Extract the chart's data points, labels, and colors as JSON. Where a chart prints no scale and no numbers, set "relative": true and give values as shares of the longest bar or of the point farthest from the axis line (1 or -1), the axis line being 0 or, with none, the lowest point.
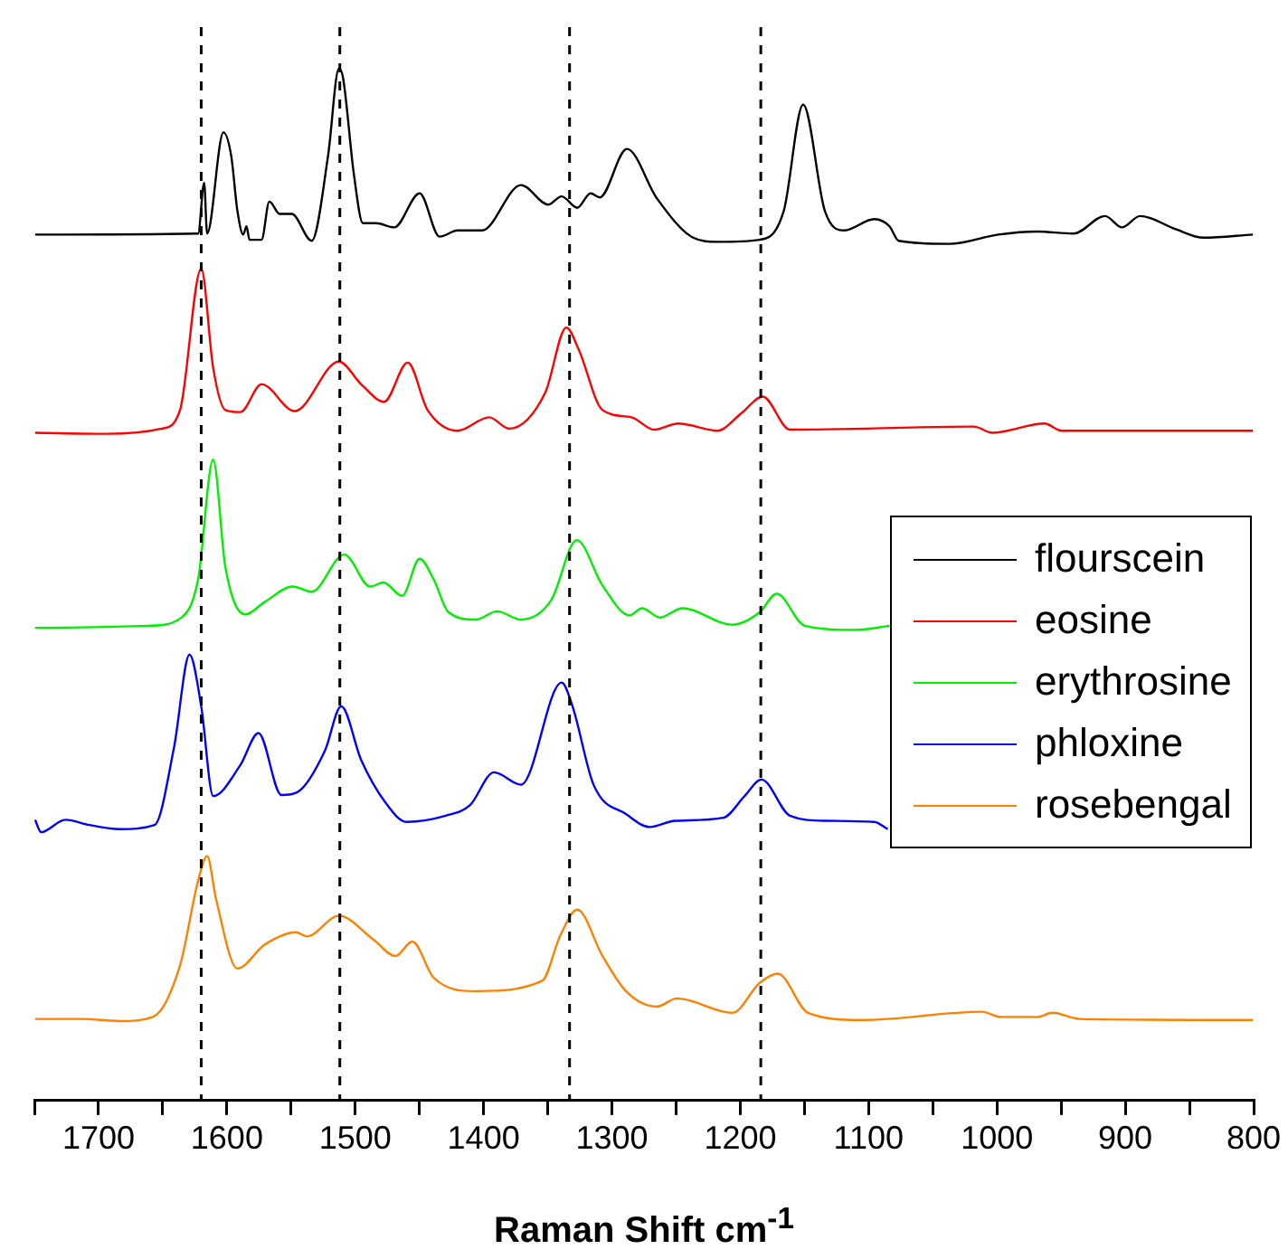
{
  "chart_data": {
    "type": "line",
    "xlabel": "Raman Shift cm$^{-1}$",
    "relative": true,
    "marker": "none",
    "legend": "right",
    "xlim": [
      1750,
      800
    ],
    "xticks": [
      {
        "value": 1750,
        "label": null
      },
      1700,
      {
        "value": 1650,
        "label": null
      },
      1600,
      {
        "value": 1550,
        "label": null
      },
      1500,
      {
        "value": 1450,
        "label": null
      },
      1400,
      {
        "value": 1350,
        "label": null
      },
      1300,
      {
        "value": 1250,
        "label": null
      },
      1200,
      {
        "value": 1150,
        "label": null
      },
      1100,
      {
        "value": 1050,
        "label": null
      },
      1000,
      {
        "value": 950,
        "label": null
      },
      900,
      {
        "value": 850,
        "label": null
      },
      800
    ],
    "ref_lines": [
      {
        "axis": "x",
        "value": 1620,
        "color": "#000000",
        "line_style": "dashed"
      },
      {
        "axis": "x",
        "value": 1512,
        "color": "#000000",
        "line_style": "dashed"
      },
      {
        "axis": "x",
        "value": 1333,
        "color": "#000000",
        "line_style": "dashed"
      },
      {
        "axis": "x",
        "value": 1184,
        "color": "#000000",
        "line_style": "dashed"
      }
    ],
    "series": [
      {
        "name": "flourscein",
        "color": "#000000",
        "x": [
          1749.4,
          1622.4,
          1617.7,
          1615.4,
          1602.7,
          1596.6,
          1591.8,
          1587.2,
          1584.7,
          1582.4,
          1573.0,
          1566.9,
          1558.9,
          1549.4,
          1533.9,
          1521.2,
          1512.7,
          1509.5,
          1501.0,
          1494.0,
          1483.7,
          1469.6,
          1449.8,
          1434.3,
          1420.2,
          1401.3,
          1370.8,
          1349.6,
          1339.2,
          1327.0,
          1316.6,
          1309.5,
          1288.3,
          1264.9,
          1236.7,
          1217.8,
          1184.9,
          1166.1,
          1151.0,
          1134.1,
          1119.0,
          1095.6,
          1083.7,
          1076.6,
          1036.7,
          999.0,
          968.5,
          940.3,
          915.7,
          902.6,
          888.5,
          860.3,
          839.1,
          800.6
        ],
        "values": [
          0.839,
          0.84,
          0.889,
          0.84,
          0.938,
          0.915,
          0.862,
          0.839,
          0.847,
          0.834,
          0.834,
          0.871,
          0.859,
          0.859,
          0.833,
          0.915,
          1,
          0.991,
          0.897,
          0.85,
          0.85,
          0.846,
          0.879,
          0.837,
          0.843,
          0.843,
          0.887,
          0.868,
          0.876,
          0.865,
          0.879,
          0.875,
          0.922,
          0.874,
          0.836,
          0.832,
          0.834,
          0.862,
          0.965,
          0.862,
          0.843,
          0.854,
          0.847,
          0.833,
          0.83,
          0.839,
          0.842,
          0.84,
          0.857,
          0.846,
          0.857,
          0.844,
          0.836,
          0.839
        ]
      },
      {
        "name": "eosine",
        "color": "#ff0000",
        "x": [
          1749.4,
          1693.0,
          1650.6,
          1636.5,
          1620.0,
          1610.7,
          1601.2,
          1589.5,
          1573.0,
          1547.2,
          1512.7,
          1495.4,
          1477.5,
          1459.1,
          1443.6,
          1420.2,
          1395.6,
          1380.1,
          1351.9,
          1335.5,
          1326.0,
          1307.3,
          1284.7,
          1267.2,
          1248.4,
          1217.8,
          1199.0,
          1182.5,
          1161.3,
          1017.9,
          1003.8,
          962.9,
          949.6,
          800.6
        ],
        "values": [
          0.647,
          0.646,
          0.651,
          0.669,
          0.806,
          0.71,
          0.669,
          0.667,
          0.694,
          0.668,
          0.716,
          0.694,
          0.677,
          0.715,
          0.669,
          0.649,
          0.662,
          0.651,
          0.686,
          0.749,
          0.728,
          0.669,
          0.662,
          0.65,
          0.656,
          0.649,
          0.666,
          0.682,
          0.65,
          0.653,
          0.647,
          0.656,
          0.649,
          0.649
        ]
      },
      {
        "name": "erythrosine",
        "color": "#00ee00",
        "x": [
          1749.4,
          1660.7,
          1636.5,
          1622.4,
          1610.7,
          1601.2,
          1585.7,
          1570.6,
          1548.6,
          1533.9,
          1508.5,
          1488.3,
          1478.0,
          1463.4,
          1449.8,
          1438.9,
          1427.2,
          1406.0,
          1389.5,
          1370.8,
          1347.2,
          1327.4,
          1307.3,
          1286.1,
          1276.6,
          1262.5,
          1245.1,
          1206.1,
          1184.9,
          1171.7,
          1149.6,
          1109.7,
          1083.7
        ],
        "values": [
          0.458,
          0.46,
          0.467,
          0.505,
          0.621,
          0.517,
          0.471,
          0.483,
          0.498,
          0.493,
          0.529,
          0.498,
          0.502,
          0.489,
          0.525,
          0.505,
          0.473,
          0.466,
          0.474,
          0.466,
          0.485,
          0.543,
          0.499,
          0.47,
          0.477,
          0.468,
          0.477,
          0.461,
          0.473,
          0.491,
          0.46,
          0.456,
          0.46
        ]
      },
      {
        "name": "phloxine",
        "color": "#0000ff",
        "x": [
          1749.4,
          1744.8,
          1725.9,
          1707.1,
          1683.6,
          1656.3,
          1641.2,
          1629.1,
          1620.0,
          1610.7,
          1589.5,
          1575.4,
          1557.5,
          1544.8,
          1523.6,
          1510.9,
          1495.4,
          1476.6,
          1460.1,
          1429.5,
          1410.7,
          1391.9,
          1370.8,
          1339.2,
          1330.7,
          1314.3,
          1288.3,
          1270.6,
          1250.8,
          1213.1,
          1196.6,
          1183.5,
          1161.3,
          1133.1,
          1095.6,
          1085.1
        ],
        "values": [
          0.272,
          0.26,
          0.272,
          0.267,
          0.263,
          0.267,
          0.342,
          0.432,
          0.382,
          0.295,
          0.325,
          0.356,
          0.296,
          0.299,
          0.339,
          0.382,
          0.33,
          0.289,
          0.27,
          0.276,
          0.286,
          0.318,
          0.306,
          0.405,
          0.382,
          0.306,
          0.277,
          0.265,
          0.271,
          0.274,
          0.295,
          0.311,
          0.276,
          0.271,
          0.27,
          0.263
        ]
      },
      {
        "name": "rosebengal",
        "color": "#ff8000",
        "x": [
          1749.4,
          1711.7,
          1683.6,
          1657.7,
          1636.5,
          1622.4,
          1615.4,
          1608.4,
          1591.8,
          1570.6,
          1546.2,
          1537.7,
          1512.7,
          1485.9,
          1468.6,
          1455.5,
          1438.9,
          1406.0,
          1354.3,
          1340.2,
          1327.0,
          1307.3,
          1288.3,
          1264.9,
          1249.4,
          1206.1,
          1184.9,
          1170.8,
          1147.2,
          1104.9,
          1011.8,
          996.7,
          968.5,
          956.7,
          935.5,
          800.6
        ],
        "values": [
          0.079,
          0.079,
          0.077,
          0.081,
          0.131,
          0.213,
          0.237,
          0.195,
          0.128,
          0.151,
          0.163,
          0.159,
          0.179,
          0.156,
          0.14,
          0.154,
          0.119,
          0.106,
          0.116,
          0.16,
          0.185,
          0.14,
          0.105,
          0.091,
          0.099,
          0.085,
          0.114,
          0.123,
          0.085,
          0.078,
          0.086,
          0.081,
          0.081,
          0.085,
          0.079,
          0.078
        ]
      }
    ]
  }
}
